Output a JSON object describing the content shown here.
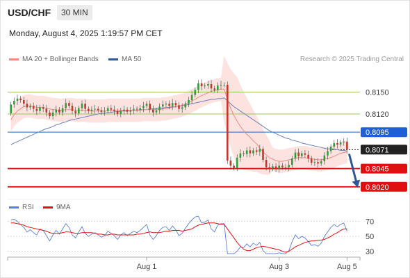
{
  "header": {
    "symbol": "USD/CHF",
    "timeframe": "30 MIN",
    "datetime": "Monday, August 4, 2025 1:19:57 PM CET",
    "credit": "Research © 2025 Trading Central"
  },
  "chart_data": [
    {
      "type": "candlestick",
      "title": "USD/CHF",
      "interval": "30 MIN",
      "legend": [
        {
          "name": "MA 20 + Bollinger Bands",
          "color": "#f28b82"
        },
        {
          "name": "MA 50",
          "color": "#2f5597"
        }
      ],
      "ylim": [
        0.80055,
        0.8181
      ],
      "x_tick_labels": [
        {
          "label": "Aug 1",
          "index": 42
        },
        {
          "label": "Aug 3",
          "index": 83
        },
        {
          "label": "Aug 5",
          "index": 104
        }
      ],
      "x_range": [
        -1,
        108
      ],
      "ohlc_start": {
        "open": 0.8121,
        "close": 0.813
      },
      "close": [
        0.8133,
        0.8138,
        0.8141,
        0.8139,
        0.8134,
        0.8129,
        0.8131,
        0.8127,
        0.8124,
        0.8129,
        0.8127,
        0.8122,
        0.8117,
        0.8122,
        0.8126,
        0.8122,
        0.8128,
        0.8135,
        0.8131,
        0.8124,
        0.8121,
        0.8128,
        0.8134,
        0.8127,
        0.8124,
        0.8126,
        0.8127,
        0.8125,
        0.8123,
        0.8124,
        0.8128,
        0.8126,
        0.8124,
        0.812,
        0.8124,
        0.8126,
        0.8123,
        0.8125,
        0.8127,
        0.8126,
        0.8128,
        0.8131,
        0.8134,
        0.8126,
        0.8122,
        0.8125,
        0.813,
        0.8133,
        0.8134,
        0.8131,
        0.8135,
        0.8132,
        0.8127,
        0.8129,
        0.8134,
        0.8139,
        0.8146,
        0.8153,
        0.8162,
        0.8158,
        0.8159,
        0.8161,
        0.8155,
        0.8153,
        0.8159,
        0.816,
        0.816,
        0.8056,
        0.8049,
        0.8046,
        0.806,
        0.8066,
        0.8065,
        0.807,
        0.8066,
        0.807,
        0.8068,
        0.8072,
        0.8057,
        0.8047,
        0.8045,
        0.8048,
        0.8045,
        0.8049,
        0.8047,
        0.8047,
        0.805,
        0.8059,
        0.8067,
        0.8062,
        0.8066,
        0.8064,
        0.8059,
        0.8053,
        0.8054,
        0.8052,
        0.8055,
        0.8063,
        0.8069,
        0.8075,
        0.808,
        0.8078,
        0.8081,
        0.8082,
        0.8071
      ],
      "ma20": [
        0.8112,
        0.8119,
        0.8124,
        0.8127,
        0.813,
        0.8131,
        0.8131,
        0.813,
        0.8129,
        0.8129,
        0.8129,
        0.8128,
        0.8127,
        0.8126,
        0.8126,
        0.8125,
        0.8125,
        0.8126,
        0.8126,
        0.8126,
        0.8125,
        0.8125,
        0.8125,
        0.8125,
        0.8124,
        0.8124,
        0.8124,
        0.8124,
        0.8124,
        0.8124,
        0.8125,
        0.8125,
        0.8125,
        0.8125,
        0.8125,
        0.8125,
        0.8125,
        0.8125,
        0.8125,
        0.8125,
        0.8125,
        0.8126,
        0.8126,
        0.8126,
        0.8126,
        0.8126,
        0.8126,
        0.8127,
        0.8127,
        0.8128,
        0.8129,
        0.813,
        0.8131,
        0.8132,
        0.8134,
        0.8136,
        0.8138,
        0.814,
        0.8143,
        0.8145,
        0.8147,
        0.8149,
        0.8151,
        0.8152,
        0.8153,
        0.8154,
        0.8154,
        0.814,
        0.8128,
        0.8118,
        0.811,
        0.8103,
        0.8097,
        0.8092,
        0.8088,
        0.8083,
        0.8079,
        0.8073,
        0.8068,
        0.8064,
        0.806,
        0.8058,
        0.8056,
        0.8055,
        0.8055,
        0.8056,
        0.8057,
        0.8058,
        0.8059,
        0.806,
        0.806,
        0.806,
        0.8059,
        0.8058,
        0.8058,
        0.8057,
        0.8057,
        0.8058,
        0.8059,
        0.806,
        0.8062,
        0.8064,
        0.8066,
        0.8067,
        0.8068
      ],
      "ma50": [
        0.8078,
        0.808,
        0.8082,
        0.8084,
        0.8086,
        0.8088,
        0.809,
        0.8092,
        0.8094,
        0.8096,
        0.8098,
        0.81,
        0.8101,
        0.8103,
        0.8105,
        0.8106,
        0.8108,
        0.8109,
        0.8111,
        0.8112,
        0.8113,
        0.8114,
        0.8115,
        0.8116,
        0.8117,
        0.8118,
        0.8119,
        0.812,
        0.8121,
        0.8121,
        0.8122,
        0.8122,
        0.8123,
        0.8123,
        0.8124,
        0.8124,
        0.8124,
        0.8125,
        0.8125,
        0.8125,
        0.8126,
        0.8126,
        0.8126,
        0.8127,
        0.8127,
        0.8127,
        0.8128,
        0.8128,
        0.8129,
        0.8129,
        0.813,
        0.813,
        0.8131,
        0.8131,
        0.8132,
        0.8133,
        0.8134,
        0.8135,
        0.8136,
        0.8137,
        0.8138,
        0.8139,
        0.814,
        0.814,
        0.8141,
        0.8141,
        0.8142,
        0.8138,
        0.8134,
        0.813,
        0.8127,
        0.8124,
        0.8121,
        0.8118,
        0.8115,
        0.8112,
        0.8109,
        0.8106,
        0.8103,
        0.81,
        0.8097,
        0.8095,
        0.8093,
        0.8091,
        0.8089,
        0.8087,
        0.8086,
        0.8084,
        0.8083,
        0.8082,
        0.808,
        0.8079,
        0.8078,
        0.8077,
        0.8076,
        0.8075,
        0.8074,
        0.8073,
        0.8072,
        0.8072,
        0.8071,
        0.8071,
        0.807,
        0.807,
        0.8069
      ],
      "bollinger_width": 0.0016,
      "levels": [
        {
          "label": "0.8150",
          "value": 0.815,
          "kind": "resistance",
          "color": "#9bc45a"
        },
        {
          "label": "0.8120",
          "value": 0.812,
          "kind": "resistance",
          "color": "#9bc45a"
        },
        {
          "label": "0.8095",
          "value": 0.8095,
          "kind": "pivot",
          "color": "#1f5fd6"
        },
        {
          "label": "0.8071",
          "value": 0.8071,
          "kind": "last price",
          "color": "#222222"
        },
        {
          "label": "0.8045",
          "value": 0.8045,
          "kind": "support",
          "color": "#e01010"
        },
        {
          "label": "0.8020",
          "value": 0.802,
          "kind": "support",
          "color": "#e01010"
        }
      ],
      "projection": {
        "from_index": 104,
        "to_index": 108,
        "to_value": 0.802,
        "direction": "down"
      }
    },
    {
      "type": "line",
      "title": "RSI",
      "legend": [
        {
          "name": "RSI",
          "color": "#5b7fd6"
        },
        {
          "name": "9MA",
          "color": "#e01010"
        }
      ],
      "ylim": [
        26,
        78
      ],
      "y_tick_labels": [
        "70",
        "50",
        "30"
      ],
      "y_ticks": [
        70,
        50,
        30
      ],
      "rsi": [
        72,
        73,
        70,
        66,
        62,
        56,
        59,
        55,
        52,
        60,
        58,
        51,
        44,
        52,
        58,
        53,
        60,
        67,
        62,
        52,
        48,
        56,
        63,
        54,
        50,
        53,
        55,
        52,
        49,
        51,
        57,
        54,
        51,
        46,
        52,
        55,
        51,
        54,
        57,
        55,
        58,
        62,
        66,
        52,
        46,
        51,
        58,
        62,
        63,
        58,
        64,
        59,
        51,
        54,
        61,
        67,
        72,
        76,
        80,
        68,
        69,
        72,
        60,
        56,
        65,
        67,
        67,
        18,
        16,
        15,
        30,
        36,
        35,
        40,
        36,
        41,
        38,
        42,
        31,
        25,
        24,
        27,
        24,
        28,
        26,
        26,
        31,
        43,
        52,
        47,
        50,
        48,
        43,
        38,
        39,
        37,
        41,
        50,
        56,
        62,
        66,
        63,
        66,
        68,
        57
      ],
      "rsi_ma9": [
        68,
        68,
        67,
        66,
        65,
        63,
        62,
        61,
        60,
        59,
        58,
        57,
        55,
        54,
        54,
        54,
        55,
        56,
        56,
        55,
        54,
        54,
        55,
        55,
        55,
        55,
        54,
        53,
        53,
        52,
        52,
        53,
        53,
        52,
        52,
        52,
        52,
        52,
        52,
        53,
        53,
        54,
        55,
        56,
        55,
        55,
        55,
        56,
        57,
        57,
        58,
        58,
        58,
        57,
        58,
        59,
        60,
        63,
        65,
        66,
        67,
        68,
        68,
        68,
        67,
        66,
        66,
        60,
        54,
        48,
        42,
        37,
        33,
        31,
        31,
        33,
        35,
        36,
        37,
        36,
        35,
        34,
        33,
        32,
        30,
        29,
        30,
        33,
        36,
        38,
        40,
        42,
        43,
        44,
        44,
        45,
        45,
        46,
        48,
        50,
        53,
        55,
        58,
        60,
        60
      ]
    }
  ]
}
